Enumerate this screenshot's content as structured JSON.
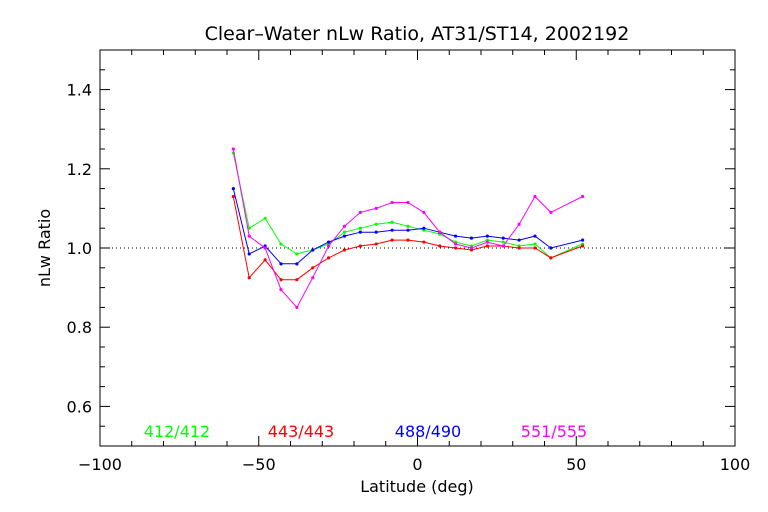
{
  "chart_data": {
    "type": "line",
    "title": "Clear–Water nLw Ratio, AT31/ST14, 2002192",
    "xlabel": "Latitude (deg)",
    "ylabel": "nLw Ratio",
    "xlim": [
      -100,
      100
    ],
    "ylim": [
      0.5,
      1.5
    ],
    "x_ticks": [
      -100,
      -50,
      0,
      50,
      100
    ],
    "x_tick_labels": [
      "−100",
      "−50",
      "0",
      "50",
      "100"
    ],
    "y_ticks": [
      0.6,
      0.8,
      1.0,
      1.2,
      1.4
    ],
    "y_tick_labels": [
      "0.6",
      "0.8",
      "1.0",
      "1.2",
      "1.4"
    ],
    "reference_line": 1.0,
    "grid": false,
    "legend": "bottom, inside plot",
    "x": [
      -58,
      -53,
      -48,
      -43,
      -38,
      -33,
      -28,
      -23,
      -18,
      -13,
      -8,
      -3,
      2,
      7,
      12,
      17,
      22,
      27,
      32,
      37,
      42,
      52
    ],
    "series": [
      {
        "name": "412/412",
        "color": "#00ff00",
        "values": [
          1.24,
          1.05,
          1.075,
          1.01,
          0.985,
          0.995,
          1.01,
          1.04,
          1.05,
          1.06,
          1.065,
          1.055,
          1.045,
          1.035,
          1.015,
          1.005,
          1.02,
          1.015,
          1.005,
          1.01,
          0.975,
          1.01
        ]
      },
      {
        "name": "443/443",
        "color": "#ff0000",
        "values": [
          1.13,
          0.925,
          0.97,
          0.92,
          0.92,
          0.95,
          0.975,
          0.995,
          1.005,
          1.01,
          1.02,
          1.02,
          1.015,
          1.005,
          1.0,
          0.995,
          1.005,
          1.005,
          1.0,
          1.0,
          0.975,
          1.005
        ]
      },
      {
        "name": "488/490",
        "color": "#0000ff",
        "values": [
          1.15,
          0.985,
          1.005,
          0.96,
          0.96,
          0.995,
          1.015,
          1.03,
          1.04,
          1.04,
          1.045,
          1.045,
          1.05,
          1.04,
          1.03,
          1.025,
          1.03,
          1.025,
          1.02,
          1.03,
          1.0,
          1.02
        ]
      },
      {
        "name": "551/555",
        "color": "#ff00ff",
        "values": [
          1.25,
          1.03,
          1.0,
          0.895,
          0.85,
          0.925,
          1.005,
          1.055,
          1.09,
          1.1,
          1.115,
          1.115,
          1.09,
          1.04,
          1.01,
          1.0,
          1.015,
          1.005,
          1.06,
          1.13,
          1.09,
          1.13
        ]
      }
    ]
  }
}
